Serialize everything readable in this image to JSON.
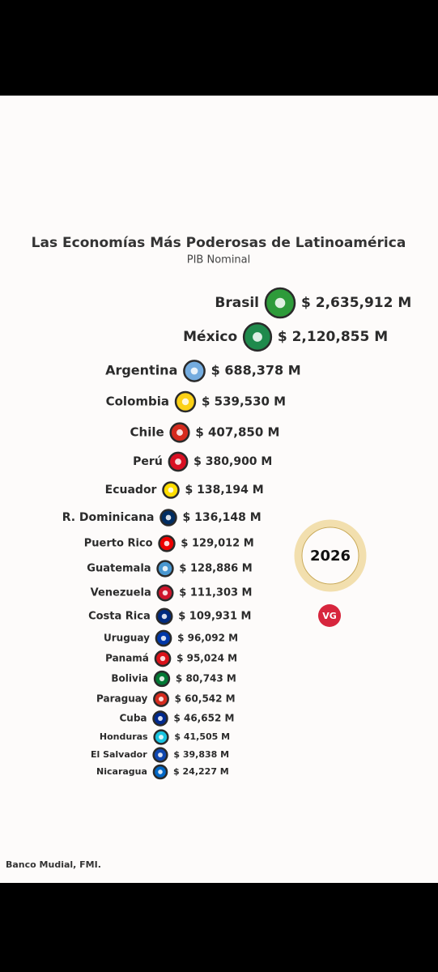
{
  "chart_data": {
    "type": "ranked-bubbles",
    "title": "Las Economías Más Poderosas de Latinoamérica",
    "subtitle": "PIB Nominal",
    "year": "2026",
    "logo": "VG",
    "source": "Banco Mudial, FMI.",
    "categories": [
      "Brasil",
      "México",
      "Argentina",
      "Colombia",
      "Chile",
      "Perú",
      "Ecuador",
      "R. Dominicana",
      "Puerto Rico",
      "Guatemala",
      "Venezuela",
      "Costa Rica",
      "Uruguay",
      "Panamá",
      "Bolivia",
      "Paraguay",
      "Cuba",
      "Honduras",
      "El Salvador",
      "Nicaragua"
    ],
    "values": [
      2635912,
      2120855,
      688378,
      539530,
      407850,
      380900,
      138194,
      136148,
      129012,
      128886,
      111303,
      109931,
      96092,
      95024,
      80743,
      60542,
      46652,
      41505,
      39838,
      24227
    ],
    "value_labels": [
      "$ 2,635,912 M",
      "$ 2,120,855 M",
      "$ 688,378 M",
      "$ 539,530 M",
      "$ 407,850 M",
      "$ 380,900 M",
      "$ 138,194 M",
      "$ 136,148 M",
      "$ 129,012 M",
      "$ 128,886 M",
      "$ 111,303 M",
      "$ 109,931 M",
      "$ 96,092 M",
      "$ 95,024 M",
      "$ 80,743 M",
      "$ 60,542 M",
      "$ 46,652 M",
      "$ 41,505 M",
      "$ 39,838 M",
      "$ 24,227 M"
    ],
    "colors": [
      "#2e9b3a",
      "#1f8a4c",
      "#74acdf",
      "#fcd116",
      "#d52b1e",
      "#d91023",
      "#ffdd00",
      "#002d62",
      "#ed0000",
      "#4997d0",
      "#cf142b",
      "#002b7f",
      "#0038a8",
      "#da121a",
      "#007934",
      "#d52b1e",
      "#002a8f",
      "#18c3df",
      "#0f47af",
      "#0067c6"
    ]
  }
}
